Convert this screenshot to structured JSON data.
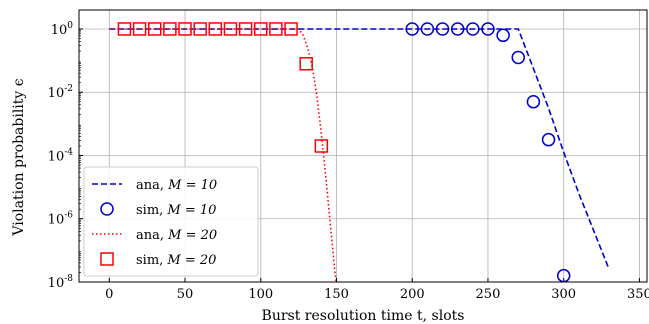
{
  "chart_data": {
    "type": "line",
    "xlabel": "Burst resolution time t, slots",
    "ylabel": "Violation probability ϵ",
    "xlim": [
      -20,
      355
    ],
    "ylim_log10": [
      -8,
      0.6
    ],
    "x_ticks": [
      0,
      50,
      100,
      150,
      200,
      250,
      300,
      350
    ],
    "y_ticks": [
      0,
      -2,
      -4,
      -6,
      -8
    ],
    "y_tick_labels": [
      "10^0",
      "10^-2",
      "10^-4",
      "10^-6",
      "10^-8"
    ],
    "grid": true,
    "legend_position": "lower-left",
    "series": [
      {
        "name": "ana, M = 10",
        "label_prefix": "ana, ",
        "label_math": "M = 10",
        "style": "dashed",
        "color": "#0000cc",
        "x": [
          0,
          270,
          280,
          290,
          300,
          310,
          320,
          330
        ],
        "log10_y": [
          0,
          0,
          -1.25,
          -2.5,
          -3.9,
          -5.2,
          -6.4,
          -7.6
        ]
      },
      {
        "name": "sim, M = 10",
        "label_prefix": "sim, ",
        "label_math": "M = 10",
        "style": "circle",
        "color": "#0000cc",
        "x": [
          200,
          210,
          220,
          230,
          240,
          250,
          260,
          270,
          280,
          290,
          300
        ],
        "log10_y": [
          0,
          0,
          0,
          0,
          0,
          0,
          -0.2,
          -0.9,
          -2.3,
          -3.5,
          -7.8
        ]
      },
      {
        "name": "ana, M = 20",
        "label_prefix": "ana, ",
        "label_math": "M = 20",
        "style": "dotted",
        "color": "#ff0000",
        "x": [
          0,
          125,
          128,
          131,
          134,
          137,
          140,
          143,
          146,
          149,
          150
        ],
        "log10_y": [
          0,
          0,
          -0.2,
          -0.6,
          -1.2,
          -2.1,
          -3.3,
          -4.7,
          -6.2,
          -7.7,
          -8.1
        ]
      },
      {
        "name": "sim, M = 20",
        "label_prefix": "sim, ",
        "label_math": "M = 20",
        "style": "square",
        "color": "#ff0000",
        "x": [
          10,
          20,
          30,
          40,
          50,
          60,
          70,
          80,
          90,
          100,
          110,
          120,
          130,
          140
        ],
        "log10_y": [
          0,
          0,
          0,
          0,
          0,
          0,
          0,
          0,
          0,
          0,
          0,
          0,
          -1.1,
          -3.7
        ]
      }
    ]
  }
}
